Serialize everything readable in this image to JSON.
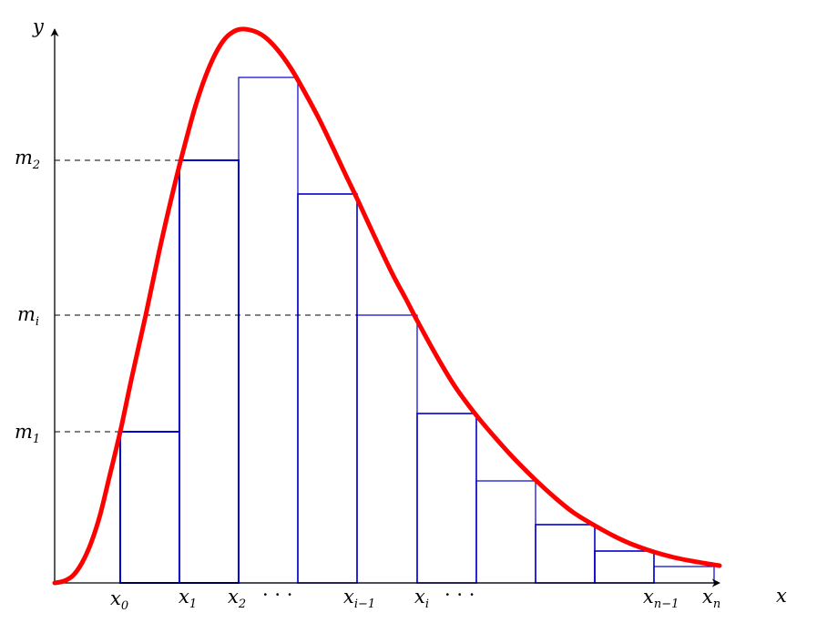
{
  "axes": {
    "x_label": "x",
    "y_label": "y"
  },
  "ticks": {
    "x": [
      {
        "base": "x",
        "sub": "0"
      },
      {
        "base": "x",
        "sub": "1"
      },
      {
        "base": "x",
        "sub": "2"
      },
      {
        "base": "x",
        "sub": "i−1"
      },
      {
        "base": "x",
        "sub": "i"
      },
      {
        "base": "x",
        "sub": "n−1"
      },
      {
        "base": "x",
        "sub": "n"
      }
    ],
    "ellipsis": "· · ·",
    "y": [
      {
        "base": "m",
        "sub": "2"
      },
      {
        "base": "m",
        "sub": "i"
      },
      {
        "base": "m",
        "sub": "1"
      }
    ]
  },
  "colors": {
    "curve": "#ff0000",
    "rectangles": "#0000cc",
    "axes": "#000000"
  }
}
